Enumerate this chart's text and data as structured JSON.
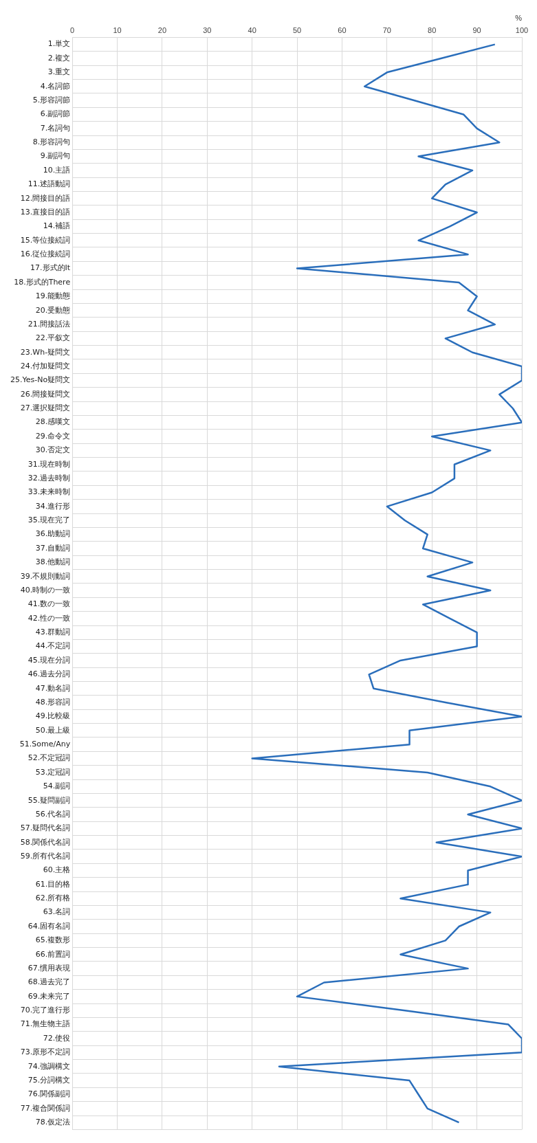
{
  "chart_data": {
    "type": "line",
    "orientation": "horizontal",
    "xlabel": "%",
    "categories": [
      "1.単文",
      "2.複文",
      "3.重文",
      "4.名詞節",
      "5.形容詞節",
      "6.副詞節",
      "7.名詞句",
      "8.形容詞句",
      "9.副詞句",
      "10.主語",
      "11.述語動詞",
      "12.間接目的語",
      "13.直接目的語",
      "14.補語",
      "15.等位接続詞",
      "16.従位接続詞",
      "17.形式的It",
      "18.形式的There",
      "19.能動態",
      "20.受動態",
      "21.間接話法",
      "22.平叙文",
      "23.Wh-疑問文",
      "24.付加疑問文",
      "25.Yes-No疑問文",
      "26.間接疑問文",
      "27.選択疑問文",
      "28.感嘆文",
      "29.命令文",
      "30.否定文",
      "31.現在時制",
      "32.過去時制",
      "33.未来時制",
      "34.進行形",
      "35.現在完了",
      "36.助動詞",
      "37.自動詞",
      "38.他動詞",
      "39.不規則動詞",
      "40.時制の一致",
      "41.数の一致",
      "42.性の一致",
      "43.群動詞",
      "44.不定詞",
      "45.現在分詞",
      "46.過去分詞",
      "47.動名詞",
      "48.形容詞",
      "49.比較級",
      "50.最上級",
      "51.Some/Any",
      "52.不定冠詞",
      "53.定冠詞",
      "54.副詞",
      "55.疑問副詞",
      "56.代名詞",
      "57.疑問代名詞",
      "58.関係代名詞",
      "59.所有代名詞",
      "60.主格",
      "61.目的格",
      "62.所有格",
      "63.名詞",
      "64.固有名詞",
      "65.複数形",
      "66.前置詞",
      "67.慣用表現",
      "68.過去完了",
      "69.未来完了",
      "70.完了進行形",
      "71.無生物主語",
      "72.使役",
      "73.原形不定詞",
      "74.強調構文",
      "75.分詞構文",
      "76.関係副詞",
      "77.複合関係詞",
      "78.仮定法"
    ],
    "series": [
      {
        "color": "#2a6ebb",
        "values": [
          94,
          82,
          70,
          65,
          76,
          87,
          90,
          95,
          77,
          89,
          83,
          80,
          90,
          84,
          77,
          88,
          50,
          86,
          90,
          88,
          94,
          83,
          89,
          100,
          100,
          95,
          98,
          100,
          80,
          93,
          85,
          85,
          80,
          70,
          74,
          79,
          78,
          89,
          79,
          93,
          78,
          84,
          90,
          90,
          73,
          66,
          67,
          83,
          100,
          75,
          75,
          40,
          79,
          93,
          100,
          88,
          100,
          81,
          100,
          88,
          88,
          73,
          93,
          86,
          83,
          73,
          88,
          56,
          50,
          74,
          97,
          100,
          100,
          46,
          75,
          77,
          79,
          86
        ]
      }
    ],
    "xlim": [
      0,
      100
    ],
    "xticks": [
      0,
      10,
      20,
      30,
      40,
      50,
      60,
      70,
      80,
      90,
      100
    ],
    "grid": true,
    "marker": "none",
    "line_style": "solid"
  }
}
